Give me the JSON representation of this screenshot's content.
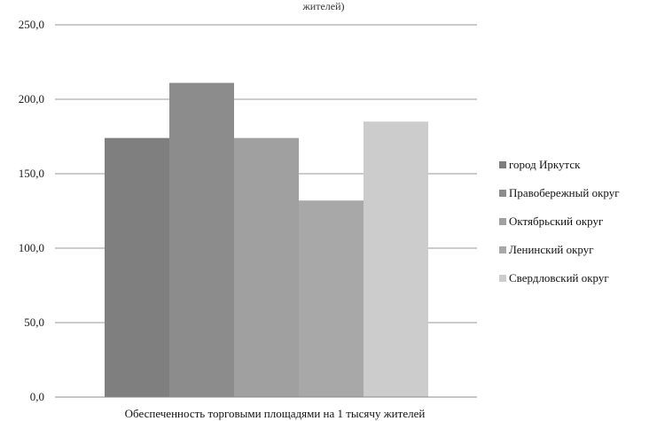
{
  "chart_data": {
    "type": "bar",
    "title_fragment": "жителей)",
    "xlabel": "Обеспеченность торговыми площадями на 1 тысячу жителей",
    "ylabel": "",
    "ylim": [
      0,
      250
    ],
    "yticks": [
      "0,0",
      "50,0",
      "100,0",
      "150,0",
      "200,0",
      "250,0"
    ],
    "grid": true,
    "legend_position": "right",
    "categories": [
      "Обеспеченность торговыми площадями на 1 тысячу жителей"
    ],
    "series": [
      {
        "name": "город Иркутск",
        "values": [
          174
        ],
        "color": "#7f7f7f"
      },
      {
        "name": "Правобережный округ",
        "values": [
          211
        ],
        "color": "#8c8c8c"
      },
      {
        "name": "Октябрьский округ",
        "values": [
          174
        ],
        "color": "#a0a0a0"
      },
      {
        "name": "Ленинский округ",
        "values": [
          132
        ],
        "color": "#a8a8a8"
      },
      {
        "name": "Свердловский округ",
        "values": [
          185
        ],
        "color": "#cccccc"
      }
    ]
  }
}
